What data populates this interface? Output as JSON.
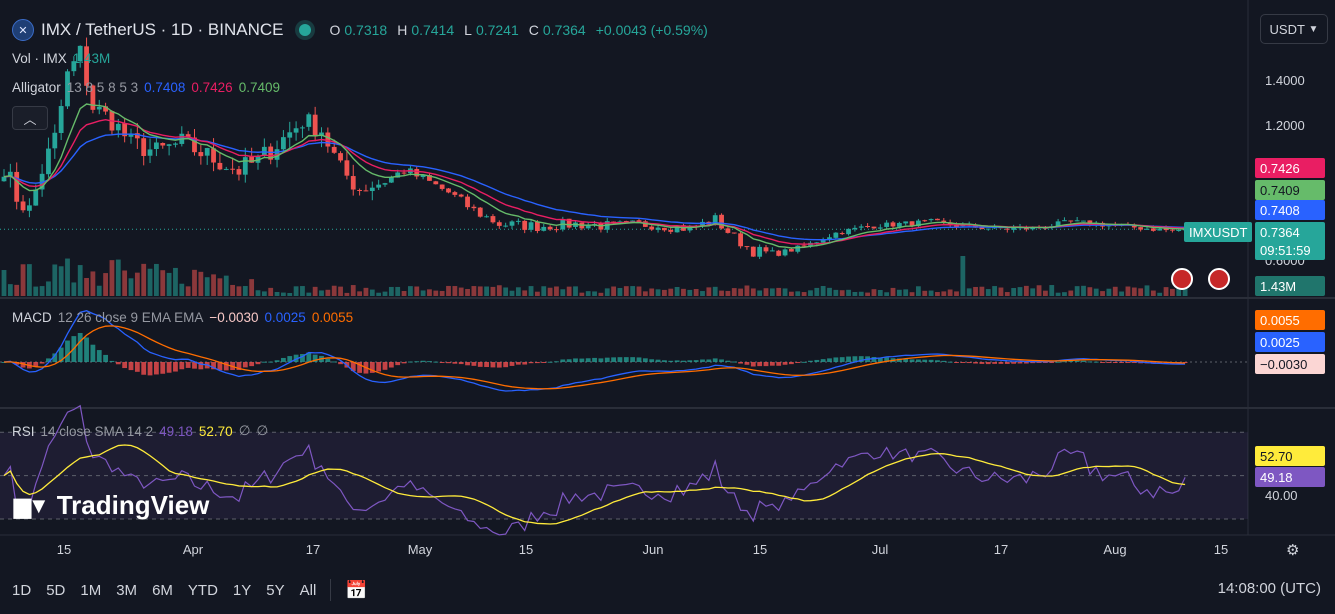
{
  "header": {
    "symbol": "IMX / TetherUS · 1D · BINANCE",
    "open_label": "O",
    "open": "0.7318",
    "high_label": "H",
    "high": "0.7414",
    "low_label": "L",
    "low": "0.7241",
    "close_label": "C",
    "close": "0.7364",
    "change": "+0.0043 (+0.59%)"
  },
  "indicators": {
    "volume": {
      "label": "Vol · IMX",
      "value": "1.43M"
    },
    "alligator": {
      "label": "Alligator",
      "params": "13 8 5 8 5 3",
      "jaw": "0.7408",
      "teeth": "0.7426",
      "lips": "0.7409"
    },
    "macd": {
      "label": "MACD",
      "params": "12 26 close 9 EMA EMA",
      "hist": "−0.0030",
      "macd": "0.0025",
      "signal": "0.0055"
    },
    "rsi": {
      "label": "RSI",
      "params": "14 close SMA 14 2",
      "rsi": "49.18",
      "sma": "52.70",
      "extra1": "∅",
      "extra2": "∅"
    }
  },
  "currency_button": "USDT",
  "collapse_icon": "chevron-up-icon",
  "price_axis": {
    "ticks": [
      "1.4000",
      "1.2000",
      "0.6000"
    ],
    "symbol_tag": "IMXUSDT",
    "last": "0.7364",
    "countdown": "09:51:59"
  },
  "price_tags": {
    "teeth": "0.7426",
    "lips": "0.7409",
    "jaw": "0.7408",
    "volume": "1.43M"
  },
  "macd_axis": {
    "signal": "0.0055",
    "macd": "0.0025",
    "hist": "−0.0030"
  },
  "rsi_axis": {
    "sma": "52.70",
    "rsi": "49.18",
    "tick": "40.00"
  },
  "time_axis": [
    "15",
    "Apr",
    "17",
    "May",
    "15",
    "Jun",
    "15",
    "Jul",
    "17",
    "Aug",
    "15"
  ],
  "brand": "TradingView",
  "timeframes": [
    "1D",
    "5D",
    "1M",
    "3M",
    "6M",
    "YTD",
    "1Y",
    "5Y",
    "All"
  ],
  "clock": "14:08:00 (UTC)",
  "colors": {
    "up": "#26a69a",
    "down": "#ef5350",
    "jaw": "#2962ff",
    "teeth": "#e91e63",
    "lips": "#66bb6a",
    "macd": "#2962ff",
    "signal": "#ff6d00",
    "rsi": "#7e57c2",
    "rsi_ma": "#ffeb3b"
  },
  "chart_data": {
    "type": "candlestick",
    "x_start": "2023-03-09",
    "x_end": "2023-08-09",
    "price_keyframes": [
      [
        0,
        1.02
      ],
      [
        2,
        0.88
      ],
      [
        4,
        0.82
      ],
      [
        6,
        1.0
      ],
      [
        8,
        1.14
      ],
      [
        10,
        1.42
      ],
      [
        12,
        1.52
      ],
      [
        14,
        1.28
      ],
      [
        17,
        1.22
      ],
      [
        20,
        1.12
      ],
      [
        24,
        1.08
      ],
      [
        28,
        1.12
      ],
      [
        33,
        1.05
      ],
      [
        37,
        1.0
      ],
      [
        40,
        1.04
      ],
      [
        44,
        1.14
      ],
      [
        47,
        1.22
      ],
      [
        50,
        1.18
      ],
      [
        53,
        1.0
      ],
      [
        56,
        0.92
      ],
      [
        60,
        0.95
      ],
      [
        63,
        1.0
      ],
      [
        66,
        0.96
      ],
      [
        70,
        0.9
      ],
      [
        74,
        0.82
      ],
      [
        78,
        0.76
      ],
      [
        84,
        0.75
      ],
      [
        90,
        0.76
      ],
      [
        96,
        0.75
      ],
      [
        102,
        0.76
      ],
      [
        108,
        0.74
      ],
      [
        112,
        0.78
      ],
      [
        115,
        0.7
      ],
      [
        118,
        0.64
      ],
      [
        122,
        0.63
      ],
      [
        126,
        0.66
      ],
      [
        131,
        0.72
      ],
      [
        136,
        0.75
      ],
      [
        141,
        0.76
      ],
      [
        146,
        0.77
      ],
      [
        151,
        0.75
      ],
      [
        156,
        0.74
      ],
      [
        161,
        0.74
      ],
      [
        164,
        0.75
      ],
      [
        168,
        0.77
      ],
      [
        172,
        0.76
      ],
      [
        176,
        0.75
      ],
      [
        180,
        0.74
      ],
      [
        184,
        0.73
      ],
      [
        186,
        0.7364
      ]
    ],
    "alligator_last": {
      "jaw": 0.7408,
      "teeth": 0.7426,
      "lips": 0.7409
    },
    "macd_last": {
      "macd": 0.0025,
      "signal": 0.0055,
      "hist": -0.003
    },
    "rsi_last": {
      "rsi": 49.18,
      "sma": 52.7
    },
    "volume_last": "1.43M"
  }
}
